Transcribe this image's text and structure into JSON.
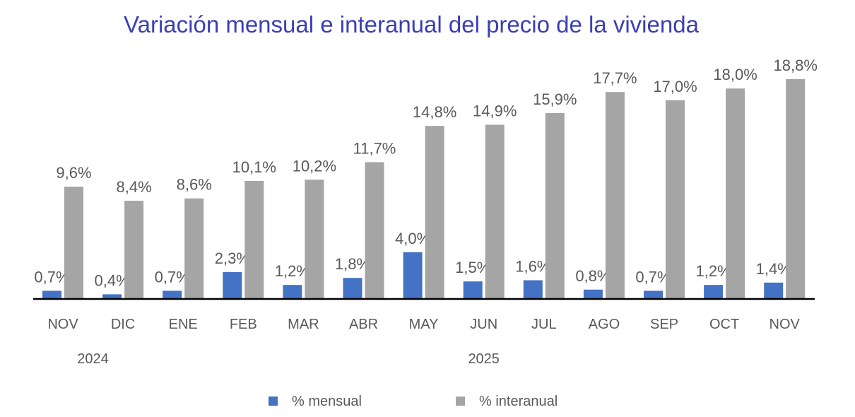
{
  "chart_data": {
    "type": "bar",
    "title": "Variación mensual e interanual del precio de la vivienda",
    "categories": [
      "NOV",
      "DIC",
      "ENE",
      "FEB",
      "MAR",
      "ABR",
      "MAY",
      "JUN",
      "JUL",
      "AGO",
      "SEP",
      "OCT",
      "NOV"
    ],
    "year_labels": [
      {
        "label": "2024",
        "under_category_index": 0.5
      },
      {
        "label": "2025",
        "under_category_index": 7
      }
    ],
    "series": [
      {
        "name": "% mensual",
        "color": "#4472C4",
        "values": [
          0.7,
          0.4,
          0.7,
          2.3,
          1.2,
          1.8,
          4.0,
          1.5,
          1.6,
          0.8,
          0.7,
          1.2,
          1.4
        ],
        "labels": [
          "0,7%",
          "0,4%",
          "0,7%",
          "2,3%",
          "1,2%",
          "1,8%",
          "4,0%",
          "1,5%",
          "1,6%",
          "0,8%",
          "0,7%",
          "1,2%",
          "1,4%"
        ]
      },
      {
        "name": "% interanual",
        "color": "#A5A5A5",
        "values": [
          9.6,
          8.4,
          8.6,
          10.1,
          10.2,
          11.7,
          14.8,
          14.9,
          15.9,
          17.7,
          17.0,
          18.0,
          18.8
        ],
        "labels": [
          "9,6%",
          "8,4%",
          "8,6%",
          "10,1%",
          "10,2%",
          "11,7%",
          "14,8%",
          "14,9%",
          "15,9%",
          "17,7%",
          "17,0%",
          "18,0%",
          "18,8%"
        ]
      }
    ],
    "ylim": [
      0,
      18.8
    ],
    "grid": false,
    "legend_position": "bottom",
    "title_color": "#3B3FB5"
  }
}
